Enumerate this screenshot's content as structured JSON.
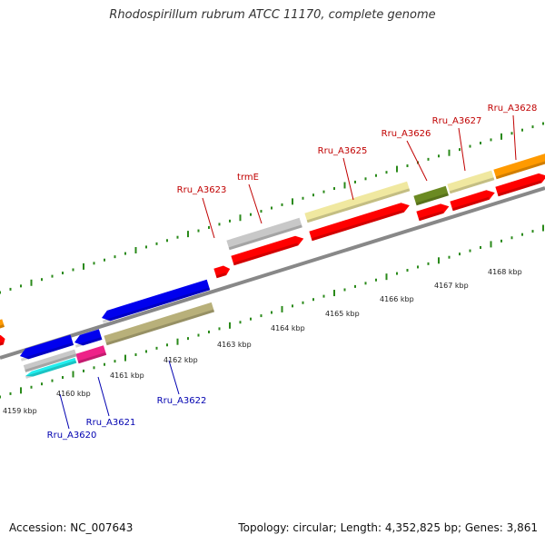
{
  "title": "Rhodospirillum rubrum ATCC 11170, complete genome",
  "accession": "Accession: NC_007643",
  "stats": "Topology: circular; Length: 4,352,825 bp; Genes: 3,861",
  "scale_labels": [
    "4159 kbp",
    "4160 kbp",
    "4161 kbp",
    "4162 kbp",
    "4163 kbp",
    "4164 kbp",
    "4165 kbp",
    "4166 kbp",
    "4167 kbp",
    "4168 kbp"
  ],
  "upper_gene_labels": [
    "Rru_A3623",
    "trmE",
    "Rru_A3625",
    "Rru_A3626",
    "Rru_A3627",
    "Rru_A3628"
  ],
  "lower_gene_labels": [
    "Rru_A3620",
    "Rru_A3621",
    "Rru_A3622"
  ],
  "colors": {
    "upper_label": "#c00000",
    "lower_label": "#0000b0",
    "tick": "#2a8a1a",
    "backbone": "#888888",
    "red": "#ff0000",
    "blue": "#0000ee",
    "khaki": "#b8b07a",
    "gray": "#c8c8c8",
    "pale_yellow": "#f0e8a0",
    "olive": "#6b8a22",
    "orange": "#ff9a00",
    "magenta": "#ee2288",
    "cyan": "#22eeee"
  }
}
